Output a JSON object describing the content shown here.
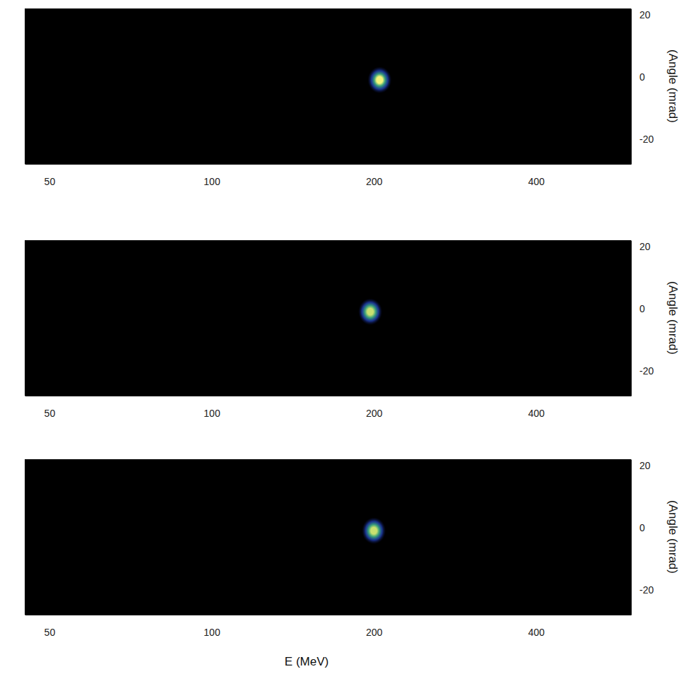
{
  "chart_data": [
    {
      "type": "scatter",
      "log": "x",
      "marker": "spot",
      "color": "#f4f57a",
      "x": [
        205
      ],
      "values": [
        -1
      ],
      "xlim": [
        45,
        600
      ],
      "xticks": [
        50,
        100,
        200,
        400
      ],
      "ylim": [
        -28,
        22
      ],
      "yticks": [
        20,
        0,
        -20
      ],
      "y_label": "(Angle (mrad)"
    },
    {
      "type": "scatter",
      "log": "x",
      "marker": "spot",
      "color": "#c8e070",
      "x": [
        197
      ],
      "values": [
        -1
      ],
      "xlim": [
        45,
        600
      ],
      "xticks": [
        50,
        100,
        200,
        400
      ],
      "ylim": [
        -28,
        22
      ],
      "yticks": [
        20,
        0,
        -20
      ],
      "y_label": "(Angle (mrad)"
    },
    {
      "type": "scatter",
      "log": "x",
      "marker": "spot",
      "color": "#c8e070",
      "x": [
        200
      ],
      "values": [
        -1
      ],
      "xlim": [
        45,
        600
      ],
      "xticks": [
        50,
        100,
        200,
        400
      ],
      "ylim": [
        -28,
        22
      ],
      "yticks": [
        20,
        0,
        -20
      ],
      "y_label": "(Angle (mrad)",
      "x_label": "E (MeV)"
    }
  ]
}
